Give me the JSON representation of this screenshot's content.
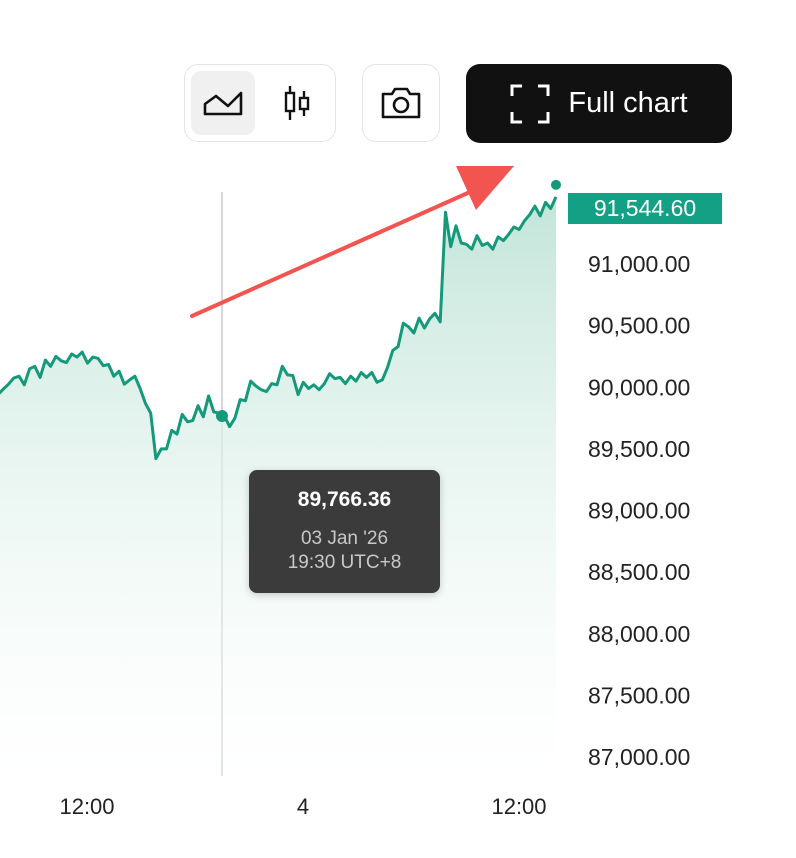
{
  "toolbar": {
    "chart_type_buttons": [
      {
        "icon": "line-area-icon",
        "active": true
      },
      {
        "icon": "candlestick-icon",
        "active": false
      }
    ],
    "screenshot_icon": "camera-icon",
    "full_chart_label": "Full chart",
    "full_chart_icon": "expand-corners-icon"
  },
  "tooltip": {
    "value": "89,766.36",
    "date": "03 Jan '26",
    "time": "19:30 UTC+8"
  },
  "colors": {
    "line": "#14997a",
    "area_top": "#bfe3d7",
    "badge": "#14a085",
    "annotation_arrow": "#f25450",
    "crosshair": "#cccccc"
  },
  "chart_data": {
    "type": "area",
    "ylim": [
      86900,
      91700
    ],
    "y_ticks": [
      "91,000.00",
      "90,500.00",
      "90,000.00",
      "89,500.00",
      "89,000.00",
      "88,500.00",
      "88,000.00",
      "87,500.00",
      "87,000.00"
    ],
    "y_tick_values": [
      91000,
      90500,
      90000,
      89500,
      89000,
      88500,
      88000,
      87500,
      87000
    ],
    "x_ticks": [
      "12:00",
      "4",
      "12:00"
    ],
    "last_value_label": "91,544.60",
    "last_value": 91544.6,
    "crosshair_value": 89766.36,
    "crosshair_index": 43,
    "values": [
      89940,
      89985,
      90025,
      90075,
      90090,
      90020,
      90150,
      90170,
      90080,
      90220,
      90170,
      90250,
      90215,
      90200,
      90270,
      90245,
      90285,
      90195,
      90245,
      90235,
      90175,
      90185,
      90090,
      90130,
      90025,
      90060,
      90090,
      89990,
      89870,
      89790,
      89420,
      89500,
      89500,
      89650,
      89620,
      89780,
      89720,
      89730,
      89850,
      89760,
      89930,
      89800,
      89790,
      89766.36,
      89680,
      89750,
      89900,
      89890,
      90050,
      90010,
      89980,
      89965,
      90030,
      90020,
      90170,
      90100,
      90095,
      89940,
      90040,
      89990,
      90020,
      89980,
      90030,
      90110,
      90070,
      90080,
      90030,
      90090,
      90050,
      90120,
      90080,
      90120,
      90040,
      90060,
      90160,
      90300,
      90330,
      90520,
      90490,
      90440,
      90560,
      90480,
      90555,
      90600,
      90530,
      91420,
      91140,
      91310,
      91170,
      91160,
      91120,
      91230,
      91150,
      91170,
      91120,
      91220,
      91190,
      91240,
      91300,
      91280,
      91350,
      91400,
      91470,
      91390,
      91500,
      91450,
      91544.6
    ]
  }
}
